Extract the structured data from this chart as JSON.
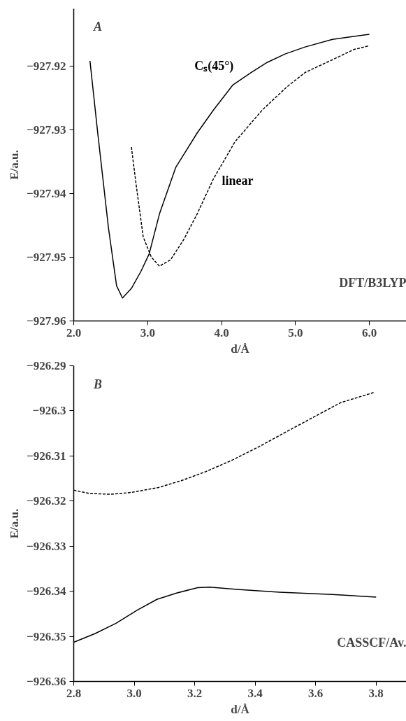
{
  "chart_data": [
    {
      "type": "line",
      "xlabel": "d/Å",
      "ylabel": "E/a.u.",
      "xlim": [
        2.0,
        6.5
      ],
      "ylim": [
        -927.96,
        -927.911
      ],
      "xticks": [
        {
          "value": 2,
          "label": "2.0"
        },
        {
          "value": 3,
          "label": "3.0"
        },
        {
          "value": 4,
          "label": "4.0"
        },
        {
          "value": 5,
          "label": "5.0"
        },
        {
          "value": 6,
          "label": "6.0"
        }
      ],
      "yticks": [
        -927.96,
        -927.95,
        -927.94,
        -927.93,
        -927.92
      ],
      "grid": false,
      "legend": false,
      "marker": "none",
      "annotations": [
        "A",
        "DFT/B3LYP"
      ],
      "series": [
        {
          "name": "Cₛ(45°)",
          "color": "#000000",
          "line_style": "solid",
          "x": [
            2.22,
            2.32,
            2.47,
            2.58,
            2.66,
            2.78,
            2.91,
            3.02,
            3.16,
            3.38,
            3.67,
            3.89,
            4.15,
            4.4,
            4.62,
            4.86,
            5.13,
            5.5,
            6.0
          ],
          "values": [
            -927.9192,
            -927.93,
            -927.9454,
            -927.9545,
            -927.9564,
            -927.9549,
            -927.9522,
            -927.9495,
            -927.9432,
            -927.9359,
            -927.9305,
            -927.9269,
            -927.923,
            -927.921,
            -927.9194,
            -927.9181,
            -927.917,
            -927.9158,
            -927.915
          ]
        },
        {
          "name": "linear",
          "color": "#000000",
          "line_style": "dashed",
          "x": [
            2.78,
            2.85,
            2.94,
            3.05,
            3.16,
            3.31,
            3.49,
            3.67,
            3.89,
            4.18,
            4.55,
            4.88,
            5.13,
            5.5,
            5.79,
            6.0
          ],
          "values": [
            -927.9327,
            -927.9391,
            -927.9468,
            -927.95,
            -927.9514,
            -927.9504,
            -927.9472,
            -927.9432,
            -927.9377,
            -927.9319,
            -927.9269,
            -927.9233,
            -927.921,
            -927.919,
            -927.9174,
            -927.9168
          ]
        }
      ]
    },
    {
      "type": "line",
      "xlabel": "d/Å",
      "ylabel": "E/a.u.",
      "xlim": [
        2.8,
        3.9
      ],
      "ylim": [
        -926.36,
        -926.29
      ],
      "xticks": [
        2.8,
        {
          "value": 3,
          "label": "3.0"
        },
        3.2,
        3.4,
        3.6,
        3.8
      ],
      "yticks": [
        -926.36,
        -926.35,
        -926.34,
        -926.33,
        -926.32,
        -926.31,
        -926.3,
        -926.29
      ],
      "grid": false,
      "legend": false,
      "marker": "none",
      "annotations": [
        "B",
        "CASSCF/Av."
      ],
      "series": [
        {
          "color": "#000000",
          "line_style": "dashed",
          "x": [
            2.8,
            2.85,
            2.92,
            2.99,
            3.08,
            3.155,
            3.236,
            3.325,
            3.414,
            3.504,
            3.593,
            3.682,
            3.794
          ],
          "values": [
            -926.3176,
            -926.3183,
            -926.3185,
            -926.3181,
            -926.317,
            -926.3155,
            -926.3135,
            -926.3109,
            -926.3079,
            -926.3046,
            -926.3014,
            -926.2982,
            -926.2959
          ]
        },
        {
          "color": "#000000",
          "line_style": "solid",
          "x": [
            2.8,
            2.87,
            2.94,
            3.01,
            3.075,
            3.14,
            3.21,
            3.25,
            3.34,
            3.48,
            3.655,
            3.8
          ],
          "values": [
            -926.3513,
            -926.3494,
            -926.3471,
            -926.3442,
            -926.3418,
            -926.3404,
            -926.3392,
            -926.3391,
            -926.3396,
            -926.3402,
            -926.3407,
            -926.3413
          ]
        }
      ]
    }
  ]
}
